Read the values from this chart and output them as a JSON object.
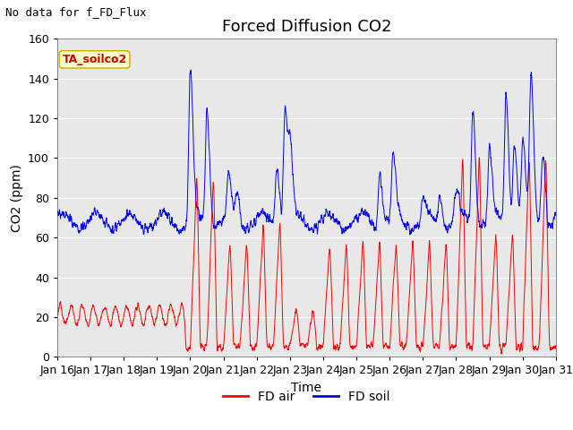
{
  "title": "Forced Diffusion CO2",
  "top_left_text": "No data for f_FD_Flux",
  "annotation_text": "TA_soilco2",
  "xlabel": "Time",
  "ylabel": "CO2 (ppm)",
  "ylim": [
    0,
    160
  ],
  "yticks": [
    0,
    20,
    40,
    60,
    80,
    100,
    120,
    140,
    160
  ],
  "xlim_start": 16.0,
  "xlim_end": 31.0,
  "xtick_labels": [
    "Jan 16",
    "Jan 17",
    "Jan 18",
    "Jan 19",
    "Jan 20",
    "Jan 21",
    "Jan 22",
    "Jan 23",
    "Jan 24",
    "Jan 25",
    "Jan 26",
    "Jan 27",
    "Jan 28",
    "Jan 29",
    "Jan 30",
    "Jan 31"
  ],
  "xtick_positions": [
    16,
    17,
    18,
    19,
    20,
    21,
    22,
    23,
    24,
    25,
    26,
    27,
    28,
    29,
    30,
    31
  ],
  "legend_entries": [
    "FD air",
    "FD soil"
  ],
  "line_colors": [
    "red",
    "blue"
  ],
  "background_color": "#e8e8e8",
  "title_fontsize": 13,
  "label_fontsize": 10,
  "tick_fontsize": 9,
  "annotation_box_color": "#ffffcc",
  "annotation_box_edge": "#ccaa00",
  "annotation_text_color": "#cc0000"
}
